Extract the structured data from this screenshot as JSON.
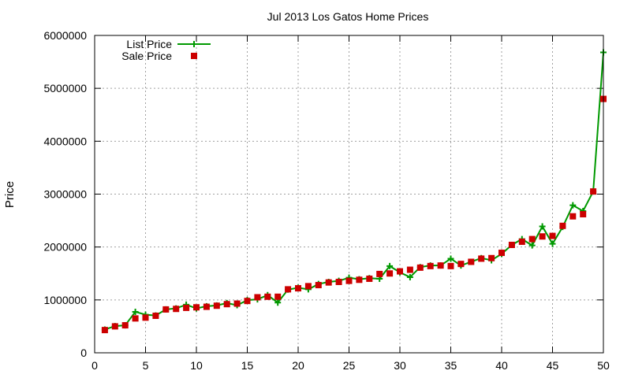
{
  "chart_data": {
    "type": "line",
    "title": "Jul 2013 Los Gatos Home Prices",
    "xlabel": "",
    "ylabel": "Price",
    "xlim": [
      0,
      50
    ],
    "ylim": [
      0,
      6000000
    ],
    "x_ticks": [
      "0",
      "5",
      "10",
      "15",
      "20",
      "25",
      "30",
      "35",
      "40",
      "45",
      "50"
    ],
    "y_ticks": [
      "0",
      "1000000",
      "2000000",
      "3000000",
      "4000000",
      "5000000",
      "6000000"
    ],
    "grid": true,
    "legend_position": "top-left",
    "x": [
      1,
      2,
      3,
      4,
      5,
      6,
      7,
      8,
      9,
      10,
      11,
      12,
      13,
      14,
      15,
      16,
      17,
      18,
      19,
      20,
      21,
      22,
      23,
      24,
      25,
      26,
      27,
      28,
      29,
      30,
      31,
      32,
      33,
      34,
      35,
      36,
      37,
      38,
      39,
      40,
      41,
      42,
      43,
      44,
      45,
      46,
      47,
      48,
      49,
      50
    ],
    "series": [
      {
        "name": "List Price",
        "style": "line-plus",
        "color": "#009900",
        "values": [
          440000,
          505000,
          520000,
          775000,
          720000,
          705000,
          820000,
          840000,
          910000,
          840000,
          880000,
          895000,
          940000,
          900000,
          995000,
          1010000,
          1090000,
          950000,
          1195000,
          1230000,
          1200000,
          1300000,
          1340000,
          1360000,
          1420000,
          1390000,
          1410000,
          1400000,
          1640000,
          1520000,
          1430000,
          1620000,
          1650000,
          1650000,
          1780000,
          1650000,
          1720000,
          1790000,
          1750000,
          1870000,
          2040000,
          2150000,
          2030000,
          2390000,
          2060000,
          2380000,
          2790000,
          2680000,
          3050000,
          5680000
        ]
      },
      {
        "name": "Sale Price",
        "style": "points-square",
        "color": "#cc0000",
        "values": [
          430000,
          500000,
          520000,
          650000,
          665000,
          700000,
          820000,
          830000,
          850000,
          860000,
          870000,
          890000,
          920000,
          930000,
          980000,
          1050000,
          1060000,
          1060000,
          1200000,
          1220000,
          1260000,
          1280000,
          1330000,
          1340000,
          1360000,
          1380000,
          1400000,
          1490000,
          1500000,
          1540000,
          1570000,
          1610000,
          1640000,
          1650000,
          1640000,
          1680000,
          1720000,
          1780000,
          1790000,
          1890000,
          2040000,
          2100000,
          2150000,
          2200000,
          2210000,
          2400000,
          2580000,
          2620000,
          3050000,
          4800000
        ]
      }
    ]
  }
}
